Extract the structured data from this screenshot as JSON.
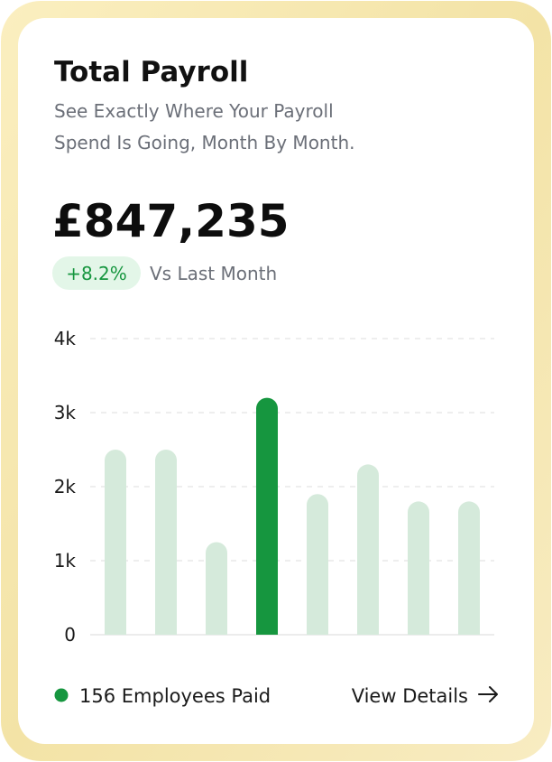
{
  "header": {
    "title": "Total Payroll",
    "subtitle_lines": [
      "See Exactly Where Your Payroll",
      "Spend Is Going, Month By Month."
    ]
  },
  "summary": {
    "amount": "£847,235",
    "change": "+8.2%",
    "change_note": "Vs Last Month"
  },
  "chart_data": {
    "type": "bar",
    "categories": [
      null,
      null,
      null,
      null,
      null,
      null,
      null,
      null
    ],
    "values": [
      2500,
      2500,
      1250,
      3200,
      1900,
      2300,
      1800,
      1800
    ],
    "colors": [
      "#d5eadb",
      "#d5eadb",
      "#d5eadb",
      "#16963f",
      "#d5eadb",
      "#d5eadb",
      "#d5eadb",
      "#d5eadb"
    ],
    "ylim": [
      0,
      4000
    ],
    "yticks": [
      0,
      {
        "value": 1000,
        "label": "1k"
      },
      {
        "value": 2000,
        "label": "2k"
      },
      {
        "value": 3000,
        "label": "3k"
      },
      {
        "value": 4000,
        "label": "4k"
      }
    ],
    "grid": true
  },
  "footer": {
    "employees": "156 Employees Paid",
    "link": "View Details"
  }
}
